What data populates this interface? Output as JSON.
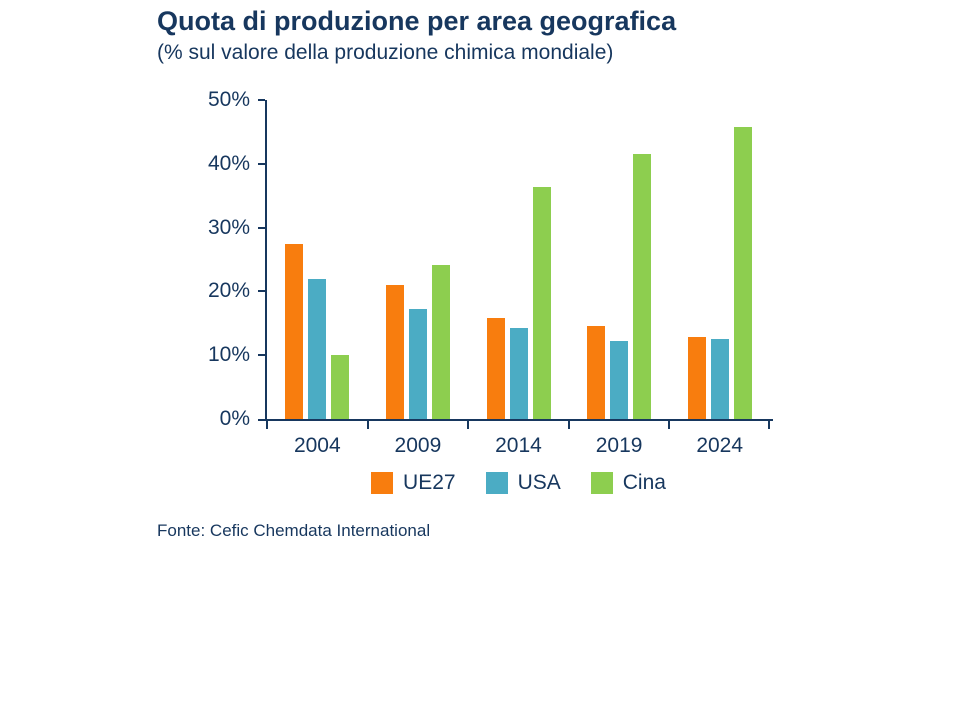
{
  "title": "Quota di produzione per area geografica",
  "subtitle": "(% sul valore della produzione chimica mondiale)",
  "source": "Fonte: Cefic Chemdata International",
  "colors": {
    "text": "#17375E",
    "axis": "#17375E",
    "series": {
      "UE27": "#F87D0E",
      "USA": "#4BACC4",
      "Cina": "#8DCE4F"
    }
  },
  "chart_data": {
    "type": "bar",
    "title": "Quota di produzione per area geografica",
    "subtitle": "(% sul valore della produzione chimica mondiale)",
    "categories": [
      "2004",
      "2009",
      "2014",
      "2019",
      "2024"
    ],
    "series": [
      {
        "name": "UE27",
        "values": [
          27.4,
          21.0,
          15.9,
          14.5,
          12.8
        ]
      },
      {
        "name": "USA",
        "values": [
          22.0,
          17.2,
          14.2,
          12.2,
          12.5
        ]
      },
      {
        "name": "Cina",
        "values": [
          10.1,
          24.2,
          36.3,
          41.6,
          45.7
        ]
      }
    ],
    "xlabel": "",
    "ylabel": "",
    "ylim": [
      0,
      50
    ],
    "yticks": [
      0,
      10,
      20,
      30,
      40,
      50
    ],
    "ytick_format": "percent",
    "grid": false,
    "legend_position": "bottom"
  }
}
